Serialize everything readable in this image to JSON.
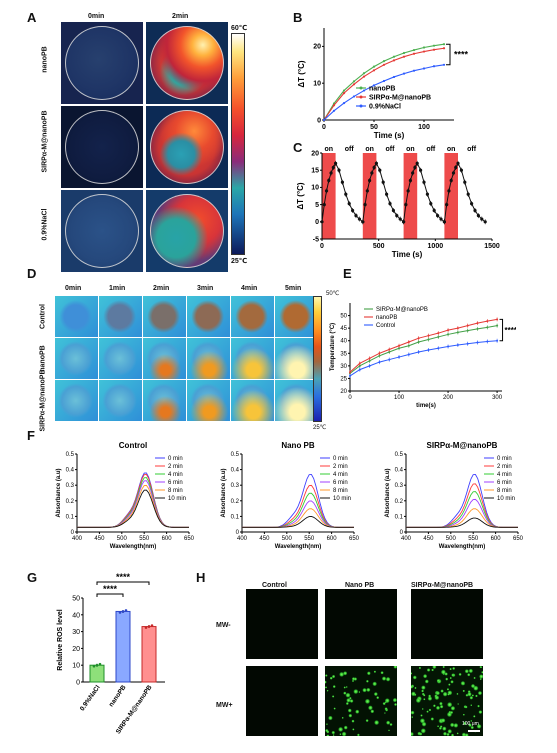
{
  "panels": {
    "A": {
      "label": "A",
      "col_headers": [
        "0min",
        "2min"
      ],
      "row_labels": [
        "nanoPB",
        "SIRPα-M@nanoPB",
        "0.9%NaCl"
      ],
      "scale_max": "60℃",
      "scale_min": "25℃"
    },
    "B": {
      "label": "B",
      "significance": "****"
    },
    "C": {
      "label": "C",
      "on_label": "on",
      "off_label": "off"
    },
    "D": {
      "label": "D",
      "col_headers": [
        "0min",
        "1min",
        "2min",
        "3min",
        "4min",
        "5min"
      ],
      "row_labels": [
        "Control",
        "nanoPB",
        "SIRPα-M@nanoPB"
      ],
      "scale_max": "50℃",
      "scale_min": "25℃"
    },
    "E": {
      "label": "E",
      "significance": "****"
    },
    "F": {
      "label": "F"
    },
    "G": {
      "label": "G"
    },
    "H": {
      "label": "H",
      "col_headers": [
        "Control",
        "Nano PB",
        "SIRPα-M@nanoPB"
      ],
      "row_labels": [
        "MW-",
        "MW+"
      ],
      "scale_bar": "100 μm"
    }
  },
  "chart_data": [
    {
      "id": "B",
      "type": "line",
      "xlabel": "Time (s)",
      "ylabel": "ΔT (°C)",
      "xlim": [
        0,
        130
      ],
      "ylim": [
        0,
        25
      ],
      "xticks": [
        0,
        50,
        100
      ],
      "yticks": [
        0,
        10,
        20
      ],
      "legend_position": "bottom-right",
      "x": [
        0,
        10,
        20,
        30,
        40,
        50,
        60,
        70,
        80,
        90,
        100,
        110,
        120
      ],
      "series": [
        {
          "name": "nanoPB",
          "color": "#4caf50",
          "values": [
            0,
            4.5,
            8,
            10.5,
            12.7,
            14.5,
            16,
            17.2,
            18.2,
            19,
            19.7,
            20.2,
            20.6
          ]
        },
        {
          "name": "SIRPα-M@nanoPB",
          "color": "#e53935",
          "values": [
            0,
            4,
            7.3,
            9.7,
            11.8,
            13.5,
            15,
            16.2,
            17.2,
            18,
            18.6,
            19.1,
            19.5
          ]
        },
        {
          "name": "0.9%NaCl",
          "color": "#2d5bff",
          "values": [
            0,
            2.5,
            4.6,
            6.4,
            8,
            9.4,
            10.6,
            11.7,
            12.6,
            13.4,
            14,
            14.6,
            15
          ]
        }
      ],
      "significance": "****"
    },
    {
      "id": "C",
      "type": "line",
      "xlabel": "Time (s)",
      "ylabel": "ΔT (°C)",
      "xlim": [
        0,
        1500
      ],
      "ylim": [
        -5,
        20
      ],
      "xticks": [
        0,
        500,
        1000,
        1500
      ],
      "yticks": [
        -5,
        0,
        5,
        10,
        15,
        20
      ],
      "on_periods": [
        [
          0,
          120
        ],
        [
          360,
          480
        ],
        [
          720,
          840
        ],
        [
          1080,
          1200
        ]
      ],
      "cycle_start": [
        0,
        360,
        720,
        1080
      ],
      "cycle_t": [
        0,
        20,
        40,
        60,
        80,
        100,
        120,
        150,
        180,
        210,
        240,
        270,
        300,
        330,
        360
      ],
      "cycle_values": [
        0,
        5,
        9,
        12,
        14.2,
        15.8,
        17,
        15,
        11.5,
        8,
        5.3,
        3.3,
        1.8,
        0.8,
        0
      ]
    },
    {
      "id": "E",
      "type": "line",
      "xlabel": "time(s)",
      "ylabel": "Temperature (°C)",
      "xlim": [
        0,
        310
      ],
      "ylim": [
        20,
        55
      ],
      "xticks": [
        0,
        100,
        200,
        300
      ],
      "yticks": [
        20,
        25,
        30,
        35,
        40,
        45,
        50
      ],
      "legend_position": "top-left",
      "x": [
        0,
        20,
        40,
        60,
        80,
        100,
        120,
        140,
        160,
        180,
        200,
        220,
        240,
        260,
        280,
        300
      ],
      "series": [
        {
          "name": "SIRPα-M@nanoPB",
          "color": "#43a047",
          "values": [
            27,
            30,
            32,
            34,
            35.5,
            37,
            38,
            39.5,
            40.5,
            41.5,
            42.5,
            43.3,
            44,
            44.7,
            45.3,
            46
          ]
        },
        {
          "name": "nanoPB",
          "color": "#e53935",
          "values": [
            27.5,
            31,
            33,
            35,
            36.5,
            38,
            39.5,
            41,
            42,
            43,
            44.2,
            45,
            46,
            47,
            47.8,
            48.5
          ]
        },
        {
          "name": "Control",
          "color": "#2d5bff",
          "values": [
            26,
            28.5,
            30,
            31.5,
            32.5,
            33.5,
            34.5,
            35.5,
            36.3,
            37,
            37.7,
            38.3,
            38.8,
            39.3,
            39.7,
            40
          ]
        }
      ],
      "significance": "****"
    },
    {
      "id": "F1",
      "type": "line",
      "title": "Control",
      "xlabel": "Wavelength(nm)",
      "ylabel": "Absorbance (a.u)",
      "xlim": [
        400,
        650
      ],
      "ylim": [
        0,
        0.5
      ],
      "xticks": [
        400,
        450,
        500,
        550,
        600,
        650
      ],
      "yticks": [
        0,
        0.1,
        0.2,
        0.3,
        0.4,
        0.5
      ],
      "legend_position": "top-right",
      "peak_nm": 553,
      "series": [
        {
          "name": "0 min",
          "color": "#3f3fff",
          "peak": 0.38,
          "base": 0.03
        },
        {
          "name": "2 min",
          "color": "#ff3b3b",
          "peak": 0.37,
          "base": 0.03
        },
        {
          "name": "4 min",
          "color": "#33cc33",
          "peak": 0.35,
          "base": 0.03
        },
        {
          "name": "6 min",
          "color": "#a040ff",
          "peak": 0.33,
          "base": 0.03
        },
        {
          "name": "8 min",
          "color": "#ff9a2e",
          "peak": 0.3,
          "base": 0.03
        },
        {
          "name": "10 min",
          "color": "#111111",
          "peak": 0.27,
          "base": 0.03
        }
      ]
    },
    {
      "id": "F2",
      "type": "line",
      "title": "Nano PB",
      "xlabel": "Wavelength(nm)",
      "ylabel": "Absorbance (a.u)",
      "xlim": [
        400,
        650
      ],
      "ylim": [
        0,
        0.5
      ],
      "xticks": [
        400,
        450,
        500,
        550,
        600,
        650
      ],
      "yticks": [
        0,
        0.1,
        0.2,
        0.3,
        0.4,
        0.5
      ],
      "legend_position": "top-right",
      "peak_nm": 553,
      "series": [
        {
          "name": "0 min",
          "color": "#3f3fff",
          "peak": 0.37,
          "base": 0.03
        },
        {
          "name": "2 min",
          "color": "#ff3b3b",
          "peak": 0.3,
          "base": 0.03
        },
        {
          "name": "4 min",
          "color": "#33cc33",
          "peak": 0.25,
          "base": 0.03
        },
        {
          "name": "6 min",
          "color": "#a040ff",
          "peak": 0.2,
          "base": 0.03
        },
        {
          "name": "8 min",
          "color": "#ff9a2e",
          "peak": 0.15,
          "base": 0.03
        },
        {
          "name": "10 min",
          "color": "#111111",
          "peak": 0.1,
          "base": 0.03
        }
      ]
    },
    {
      "id": "F3",
      "type": "line",
      "title": "SIRPα-M@nanoPB",
      "xlabel": "Wavelength(nm)",
      "ylabel": "Absorbance (a.u)",
      "xlim": [
        400,
        650
      ],
      "ylim": [
        0,
        0.5
      ],
      "xticks": [
        400,
        450,
        500,
        550,
        600,
        650
      ],
      "yticks": [
        0,
        0.1,
        0.2,
        0.3,
        0.4,
        0.5
      ],
      "legend_position": "top-right",
      "peak_nm": 553,
      "series": [
        {
          "name": "0 min",
          "color": "#3f3fff",
          "peak": 0.37,
          "base": 0.03
        },
        {
          "name": "2 min",
          "color": "#ff3b3b",
          "peak": 0.31,
          "base": 0.03
        },
        {
          "name": "4 min",
          "color": "#33cc33",
          "peak": 0.26,
          "base": 0.03
        },
        {
          "name": "6 min",
          "color": "#a040ff",
          "peak": 0.21,
          "base": 0.03
        },
        {
          "name": "8 min",
          "color": "#ff9a2e",
          "peak": 0.15,
          "base": 0.03
        },
        {
          "name": "10 min",
          "color": "#111111",
          "peak": 0.09,
          "base": 0.03
        }
      ]
    },
    {
      "id": "G",
      "type": "bar",
      "ylabel": "Relative ROS level",
      "ylim": [
        0,
        50
      ],
      "yticks": [
        0,
        10,
        20,
        30,
        40,
        50
      ],
      "categories": [
        "0.9%NaCl",
        "nanoPB",
        "SIRPα-M@nanoPB"
      ],
      "values": [
        10,
        42,
        33
      ],
      "colors": [
        "#8ee07a",
        "#8aa8ff",
        "#ff8f8f"
      ],
      "edge_colors": [
        "#1f8f2a",
        "#2e47c9",
        "#c62828"
      ],
      "significance": [
        "****",
        "****"
      ]
    }
  ]
}
